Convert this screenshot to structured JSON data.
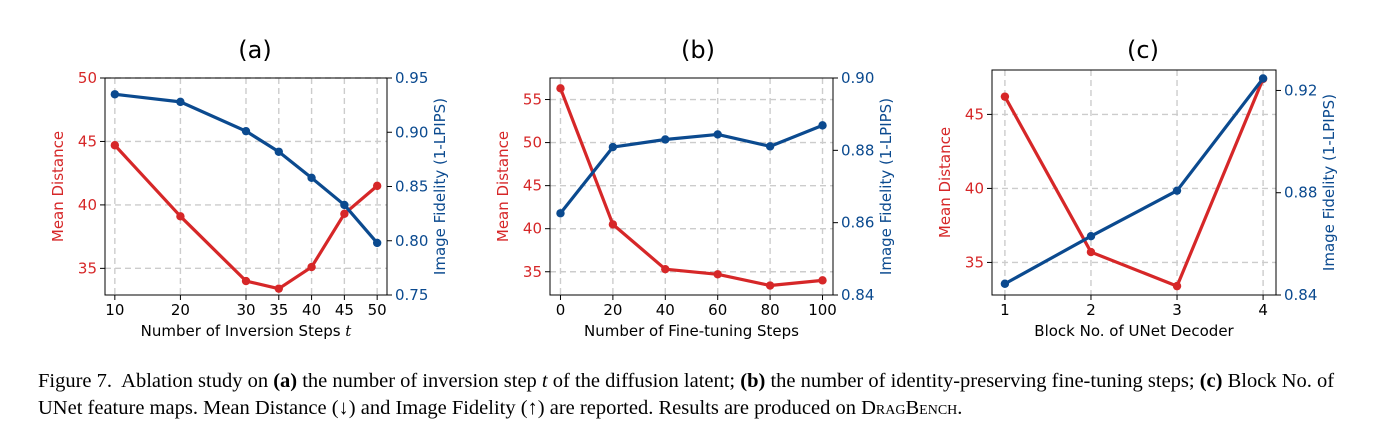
{
  "chart_data": [
    {
      "type": "line",
      "panel_label": "(a)",
      "xlabel": "Number of Inversion Steps",
      "xlabel_var": "t",
      "ylabel_left": "Mean Distance",
      "ylabel_right": "Image Fidelity (1-LPIPS)",
      "x": [
        10,
        20,
        30,
        35,
        40,
        45,
        50
      ],
      "xticks": [
        "10",
        "20",
        "30",
        "35",
        "40",
        "45",
        "50"
      ],
      "xlim": [
        8.5,
        51.5
      ],
      "ylim_left": [
        32.9,
        50
      ],
      "yticks_left": [
        35,
        40,
        45,
        50
      ],
      "ylim_right": [
        0.75,
        0.95
      ],
      "yticks_right": [
        "0.75",
        "0.80",
        "0.85",
        "0.90",
        "0.95"
      ],
      "series": [
        {
          "name": "Mean Distance",
          "axis": "left",
          "color": "#d62728",
          "values": [
            44.7,
            39.1,
            34.0,
            33.4,
            35.1,
            39.3,
            41.5
          ]
        },
        {
          "name": "Image Fidelity (1-LPIPS)",
          "axis": "right",
          "color": "#0b4a8f",
          "values": [
            0.935,
            0.928,
            0.901,
            0.882,
            0.858,
            0.833,
            0.798
          ]
        }
      ],
      "grid": true
    },
    {
      "type": "line",
      "panel_label": "(b)",
      "xlabel": "Number of Fine-tuning Steps",
      "xlabel_var": "",
      "ylabel_left": "Mean Distance",
      "ylabel_right": "Image Fidelity (1-LPIPS)",
      "x": [
        0,
        20,
        40,
        60,
        80,
        100
      ],
      "xticks": [
        "0",
        "20",
        "40",
        "60",
        "80",
        "100"
      ],
      "xlim": [
        -4,
        104
      ],
      "ylim_left": [
        32.3,
        57.5
      ],
      "yticks_left": [
        35,
        40,
        45,
        50,
        55
      ],
      "ylim_right": [
        0.84,
        0.9
      ],
      "yticks_right": [
        "0.84",
        "0.86",
        "0.88",
        "0.90"
      ],
      "series": [
        {
          "name": "Mean Distance",
          "axis": "left",
          "color": "#d62728",
          "values": [
            56.3,
            40.5,
            35.3,
            34.7,
            33.4,
            34.0
          ]
        },
        {
          "name": "Image Fidelity (1-LPIPS)",
          "axis": "right",
          "color": "#0b4a8f",
          "values": [
            0.8626,
            0.8809,
            0.883,
            0.8844,
            0.8811,
            0.8869
          ]
        }
      ],
      "grid": true
    },
    {
      "type": "line",
      "panel_label": "(c)",
      "xlabel": "Block No. of UNet Decoder",
      "xlabel_var": "",
      "ylabel_left": "Mean Distance",
      "ylabel_right": "Image Fidelity (1-LPIPS)",
      "x": [
        1,
        2,
        3,
        4
      ],
      "xticks": [
        "1",
        "2",
        "3",
        "4"
      ],
      "xlim": [
        0.85,
        4.15
      ],
      "ylim_left": [
        32.8,
        48.0
      ],
      "yticks_left": [
        35,
        40,
        45
      ],
      "ylim_right": [
        0.84,
        0.928
      ],
      "yticks_right": [
        "0.84",
        "0.88",
        "0.92"
      ],
      "series": [
        {
          "name": "Mean Distance",
          "axis": "left",
          "color": "#d62728",
          "values": [
            46.2,
            35.7,
            33.4,
            47.4
          ]
        },
        {
          "name": "Image Fidelity (1-LPIPS)",
          "axis": "right",
          "color": "#0b4a8f",
          "values": [
            0.8444,
            0.863,
            0.8808,
            0.9247
          ]
        }
      ],
      "grid": true
    }
  ],
  "caption": {
    "label": "Figure 7.",
    "t1": "Ablation study on",
    "a": "(a)",
    "t2": "the number of inversion step",
    "t_var": "t",
    "t3": "of the diffusion latent;",
    "b": "(b)",
    "t4": "the number of identity-preserving fine-tuning steps;",
    "c": "(c)",
    "t5": "Block No. of UNet feature maps. Mean Distance (↓) and Image Fidelity (↑) are reported. Results are produced on",
    "bench": "DragBench",
    "end": "."
  }
}
